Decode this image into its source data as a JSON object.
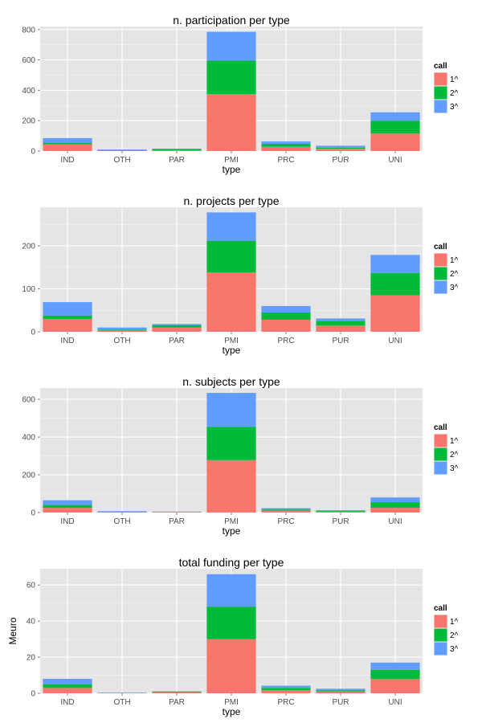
{
  "chart_data": [
    {
      "type": "bar",
      "stacked": true,
      "title": "n. participation per type",
      "xlabel": "type",
      "ylabel": "",
      "categories": [
        "IND",
        "OTH",
        "PAR",
        "PMI",
        "PRC",
        "PUR",
        "UNI"
      ],
      "ylim": [
        0,
        820
      ],
      "yticks": [
        0,
        200,
        400,
        600,
        800
      ],
      "grid": true,
      "legend": {
        "title": "call",
        "position": "right"
      },
      "series": [
        {
          "name": "1^",
          "color": "#F8766D",
          "values": [
            45,
            3,
            5,
            375,
            28,
            15,
            115
          ]
        },
        {
          "name": "2^",
          "color": "#00BA38",
          "values": [
            10,
            2,
            8,
            220,
            20,
            7,
            85
          ]
        },
        {
          "name": "3^",
          "color": "#619CFF",
          "values": [
            30,
            5,
            2,
            190,
            15,
            13,
            55
          ]
        }
      ]
    },
    {
      "type": "bar",
      "stacked": true,
      "title": "n. projects per type",
      "xlabel": "type",
      "ylabel": "",
      "categories": [
        "IND",
        "OTH",
        "PAR",
        "PMI",
        "PRC",
        "PUR",
        "UNI"
      ],
      "ylim": [
        0,
        290
      ],
      "yticks": [
        0,
        100,
        200
      ],
      "grid": true,
      "legend": {
        "title": "call",
        "position": "right"
      },
      "series": [
        {
          "name": "1^",
          "color": "#F8766D",
          "values": [
            30,
            3,
            10,
            138,
            28,
            15,
            85
          ]
        },
        {
          "name": "2^",
          "color": "#00BA38",
          "values": [
            8,
            2,
            5,
            74,
            17,
            10,
            52
          ]
        },
        {
          "name": "3^",
          "color": "#619CFF",
          "values": [
            31,
            5,
            3,
            66,
            15,
            6,
            42
          ]
        }
      ]
    },
    {
      "type": "bar",
      "stacked": true,
      "title": "n. subjects per type",
      "xlabel": "type",
      "ylabel": "",
      "categories": [
        "IND",
        "OTH",
        "PAR",
        "PMI",
        "PRC",
        "PUR",
        "UNI"
      ],
      "ylim": [
        0,
        660
      ],
      "yticks": [
        0,
        200,
        400,
        600
      ],
      "grid": true,
      "legend": {
        "title": "call",
        "position": "right"
      },
      "series": [
        {
          "name": "1^",
          "color": "#F8766D",
          "values": [
            25,
            2,
            3,
            278,
            10,
            5,
            25
          ]
        },
        {
          "name": "2^",
          "color": "#00BA38",
          "values": [
            15,
            2,
            1,
            176,
            5,
            5,
            30
          ]
        },
        {
          "name": "3^",
          "color": "#619CFF",
          "values": [
            25,
            3,
            1,
            180,
            8,
            2,
            25
          ]
        }
      ]
    },
    {
      "type": "bar",
      "stacked": true,
      "title": "total funding per type",
      "xlabel": "type",
      "ylabel": "Meuro",
      "categories": [
        "IND",
        "OTH",
        "PAR",
        "PMI",
        "PRC",
        "PUR",
        "UNI"
      ],
      "ylim": [
        0,
        69
      ],
      "yticks": [
        0,
        20,
        40,
        60
      ],
      "grid": true,
      "legend": {
        "title": "call",
        "position": "right"
      },
      "series": [
        {
          "name": "1^",
          "color": "#F8766D",
          "values": [
            3,
            0.1,
            0.6,
            30,
            1.8,
            1.0,
            8
          ]
        },
        {
          "name": "2^",
          "color": "#00BA38",
          "values": [
            2,
            0.1,
            0.4,
            18,
            1.2,
            0.7,
            5
          ]
        },
        {
          "name": "3^",
          "color": "#619CFF",
          "values": [
            3,
            0.2,
            0.1,
            18,
            1.2,
            0.8,
            4
          ]
        }
      ]
    }
  ]
}
